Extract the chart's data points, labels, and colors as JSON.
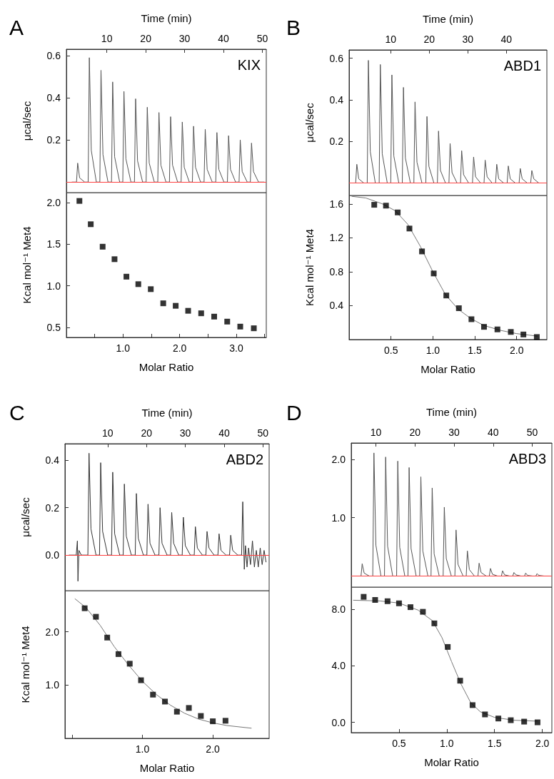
{
  "chart_data": [
    {
      "type": "line",
      "title": "A",
      "annotations": [
        "KIX"
      ],
      "xlabel": "Time (min)",
      "ylabel": "μcal/sec",
      "xlim": [
        -0.4,
        51
      ],
      "xticks": [
        10,
        20,
        30,
        40,
        50
      ],
      "ylim": [
        -0.05,
        0.63
      ],
      "yticks": [
        {
          "value": 0,
          "label": null
        },
        0.2,
        0.4,
        0.6
      ],
      "marker": "none",
      "ref_lines": [
        {
          "axis": "y",
          "value": 0,
          "color": "#ff4040"
        }
      ],
      "series": [
        {
          "color": "#555555",
          "x": [
            1,
            2.2,
            2.5,
            3,
            4.3,
            5.2,
            5.5,
            6,
            7.3,
            8.2,
            8.5,
            9,
            10.3,
            11.2,
            11.5,
            12,
            13.3,
            14.1,
            14.4,
            14.9,
            16.2,
            17.1,
            17.4,
            17.9,
            19.2,
            20.1,
            20.4,
            20.9,
            22.2,
            23.1,
            23.4,
            23.9,
            25.2,
            26.1,
            26.4,
            26.9,
            28.2,
            29.1,
            29.4,
            29.9,
            31.2,
            32,
            32.3,
            32.8,
            34.1,
            35,
            35.3,
            35.8,
            37.1,
            38,
            38.3,
            38.8,
            40.1,
            41,
            41.3,
            41.8,
            43.1,
            44,
            44.3,
            44.8,
            46.1,
            46.9,
            47.2,
            47.7,
            49,
            50.5
          ],
          "values": [
            0,
            0,
            0.09,
            0.02,
            0,
            0,
            0.59,
            0.15,
            0,
            0,
            0.53,
            0.13,
            0,
            0,
            0.475,
            0.12,
            0,
            0,
            0.43,
            0.11,
            0,
            0,
            0.395,
            0.1,
            0,
            0,
            0.355,
            0.09,
            0,
            0,
            0.33,
            0.08,
            0,
            0,
            0.31,
            0.08,
            0,
            0,
            0.285,
            0.07,
            0,
            0,
            0.265,
            0.07,
            0,
            0,
            0.25,
            0.06,
            0,
            0,
            0.235,
            0.06,
            0,
            0,
            0.22,
            0.06,
            0,
            0,
            0.2,
            0.05,
            0,
            0,
            0.185,
            0.05,
            0,
            0
          ]
        }
      ]
    },
    {
      "type": "scatter",
      "xlabel": "Molar Ratio",
      "ylabel": "Kcal mol⁻¹ Met4",
      "xlim": [
        0,
        3.53
      ],
      "xticks": [
        {
          "value": 0.5,
          "label": null
        },
        {
          "value": 1,
          "label": "1.0"
        },
        {
          "value": 1.5,
          "label": null
        },
        {
          "value": 2,
          "label": "2.0"
        },
        {
          "value": 2.5,
          "label": null
        },
        {
          "value": 3,
          "label": "3.0"
        },
        {
          "value": 3.5,
          "label": null
        }
      ],
      "ylim": [
        0.38,
        2.12
      ],
      "yticks": [
        0.5,
        {
          "value": 1,
          "label": "1.0"
        },
        1.5,
        {
          "value": 2,
          "label": "2.0"
        }
      ],
      "marker": "square",
      "series": [
        {
          "color": "#000000",
          "x": [
            0.23,
            0.43,
            0.64,
            0.85,
            1.06,
            1.27,
            1.49,
            1.71,
            1.93,
            2.15,
            2.38,
            2.61,
            2.84,
            3.07,
            3.31
          ],
          "values": [
            2.02,
            1.74,
            1.47,
            1.32,
            1.11,
            1.02,
            0.96,
            0.79,
            0.76,
            0.7,
            0.67,
            0.63,
            0.57,
            0.51,
            0.49
          ]
        }
      ]
    },
    {
      "type": "line",
      "title": "B",
      "annotations": [
        "ABD1"
      ],
      "xlabel": "Time (min)",
      "ylabel": "μcal/sec",
      "xlim": [
        -0.8,
        50.5
      ],
      "xticks": [
        10,
        20,
        30,
        40
      ],
      "ylim": [
        -0.06,
        0.64
      ],
      "yticks": [
        {
          "value": 0,
          "label": null
        },
        0.2,
        0.4,
        0.6
      ],
      "marker": "none",
      "ref_lines": [
        {
          "axis": "y",
          "value": 0,
          "color": "#ff4040"
        }
      ],
      "series": [
        {
          "color": "#555555",
          "x": [
            0,
            0.9,
            1.2,
            1.7,
            3,
            3.9,
            4.2,
            4.7,
            6,
            7,
            7.3,
            7.8,
            9.1,
            10,
            10.3,
            10.8,
            12.1,
            13,
            13.3,
            13.8,
            15.1,
            16,
            16.3,
            16.8,
            18.1,
            19.1,
            19.4,
            19.9,
            21.2,
            22.1,
            22.4,
            22.9,
            24.2,
            25.1,
            25.4,
            25.9,
            27.2,
            28.1,
            28.4,
            28.9,
            30.2,
            31.2,
            31.5,
            32,
            33.3,
            34.2,
            34.5,
            35,
            36.3,
            37.2,
            37.5,
            38,
            39.3,
            40.2,
            40.5,
            41,
            42.3,
            43.3,
            43.6,
            44.1,
            45.4,
            46.3,
            46.6,
            47.1,
            48.4,
            50
          ],
          "values": [
            0,
            0,
            0.09,
            0.02,
            0,
            0,
            0.59,
            0.15,
            0,
            0,
            0.57,
            0.14,
            0,
            0,
            0.52,
            0.13,
            0,
            0,
            0.46,
            0.12,
            0,
            0,
            0.39,
            0.1,
            0,
            0,
            0.32,
            0.08,
            0,
            0,
            0.25,
            0.06,
            0,
            0,
            0.19,
            0.05,
            0,
            0,
            0.155,
            0.04,
            0,
            0,
            0.125,
            0.03,
            0,
            0,
            0.11,
            0.03,
            0,
            0,
            0.09,
            0.02,
            0,
            0,
            0.082,
            0.02,
            0,
            0,
            0.07,
            0.02,
            0,
            0,
            0.06,
            0.02,
            0,
            0
          ]
        }
      ]
    },
    {
      "type": "scatter",
      "xlabel": "Molar Ratio",
      "ylabel": "Kcal mol⁻¹ Met4",
      "xlim": [
        0,
        2.36
      ],
      "xticks": [
        0.5,
        {
          "value": 1,
          "label": "1.0"
        },
        1.5,
        {
          "value": 2,
          "label": "2.0"
        }
      ],
      "ylim": [
        0,
        1.7
      ],
      "yticks": [
        0.4,
        0.8,
        1.2,
        1.6
      ],
      "marker": "square",
      "series": [
        {
          "color": "#000000",
          "x": [
            0.3,
            0.44,
            0.58,
            0.72,
            0.87,
            1.01,
            1.16,
            1.31,
            1.46,
            1.61,
            1.77,
            1.93,
            2.08,
            2.24
          ],
          "values": [
            1.59,
            1.58,
            1.5,
            1.31,
            1.04,
            0.78,
            0.52,
            0.37,
            0.24,
            0.15,
            0.12,
            0.09,
            0.06,
            0.03
          ]
        },
        {
          "type": "line",
          "marker": "none",
          "color": "#777777",
          "x": [
            0.03,
            0.2,
            0.4,
            0.55,
            0.7,
            0.85,
            1,
            1.15,
            1.3,
            1.45,
            1.6,
            1.8,
            2,
            2.25
          ],
          "values": [
            1.69,
            1.67,
            1.6,
            1.52,
            1.36,
            1.1,
            0.8,
            0.53,
            0.36,
            0.25,
            0.17,
            0.11,
            0.07,
            0.04
          ]
        }
      ]
    },
    {
      "type": "line",
      "title": "C",
      "annotations": [
        "ABD2"
      ],
      "xlabel": "Time (min)",
      "ylabel": "μcal/sec",
      "xlim": [
        -1,
        51.6
      ],
      "xticks": [
        10,
        20,
        30,
        40,
        50
      ],
      "ylim": [
        -0.15,
        0.47
      ],
      "yticks": [
        {
          "value": 0,
          "label": "0.0"
        },
        0.2,
        0.4
      ],
      "marker": "none",
      "ref_lines": [
        {
          "axis": "y",
          "value": 0,
          "color": "#ff4040"
        }
      ],
      "series": [
        {
          "color": "#333333",
          "x": [
            0,
            1.9,
            2.2,
            2.35,
            2.6,
            3.2,
            4.9,
            5.2,
            5.7,
            7,
            7.9,
            8.2,
            8.7,
            10,
            11,
            11.3,
            11.8,
            13.1,
            14,
            14.3,
            14.8,
            16.1,
            17.1,
            17.4,
            17.9,
            19.2,
            20.1,
            20.4,
            20.9,
            22.2,
            23.2,
            23.5,
            24,
            25.3,
            26.2,
            26.5,
            27,
            28.3,
            29.2,
            29.5,
            30,
            31.3,
            32.3,
            32.6,
            33.1,
            34.4,
            35.3,
            35.6,
            36.1,
            37.4,
            38.4,
            38.7,
            39.2,
            40.5,
            41.4,
            41.7,
            42.2,
            43.5,
            44.5,
            44.8,
            45.2,
            45.5,
            45.9,
            46.3,
            46.8,
            47.3,
            47.8,
            48.3,
            48.8,
            49.3,
            49.8,
            50.3,
            50.8
          ],
          "values": [
            0,
            0,
            0.06,
            -0.11,
            0.02,
            0,
            0,
            0.43,
            0.11,
            0,
            0,
            0.39,
            0.1,
            0,
            0,
            0.35,
            0.09,
            0,
            0,
            0.3,
            0.08,
            0,
            0,
            0.26,
            0.07,
            0,
            0,
            0.215,
            0.05,
            0,
            0,
            0.2,
            0.05,
            0,
            0,
            0.18,
            0.05,
            0,
            0,
            0.16,
            0.04,
            0,
            0,
            0.12,
            0.03,
            0,
            0,
            0.1,
            0.03,
            0,
            0,
            0.09,
            0.02,
            0,
            0,
            0.084,
            0.02,
            0,
            0,
            0.225,
            -0.06,
            0.04,
            -0.05,
            0.03,
            -0.04,
            0.06,
            -0.05,
            0.02,
            -0.05,
            0.03,
            -0.04,
            0.02,
            -0.03
          ]
        }
      ]
    },
    {
      "type": "scatter",
      "xlabel": "Molar Ratio",
      "ylabel": "Kcal mol⁻¹ Met4",
      "xlim": [
        -0.1,
        2.8
      ],
      "xticks": [
        {
          "value": 0,
          "label": null
        },
        {
          "value": 1,
          "label": "1.0"
        },
        {
          "value": 2,
          "label": "2.0"
        }
      ],
      "ylim": [
        0,
        2.77
      ],
      "yticks": [
        {
          "value": 1,
          "label": "1.0"
        },
        {
          "value": 2,
          "label": "2.0"
        }
      ],
      "marker": "square",
      "series": [
        {
          "color": "#000000",
          "x": [
            0.18,
            0.34,
            0.5,
            0.66,
            0.82,
            0.98,
            1.15,
            1.32,
            1.49,
            1.66,
            1.83,
            2,
            2.18
          ],
          "values": [
            2.44,
            2.28,
            1.89,
            1.58,
            1.4,
            1.09,
            0.82,
            0.69,
            0.5,
            0.57,
            0.42,
            0.32,
            0.33
          ]
        },
        {
          "type": "line",
          "marker": "none",
          "color": "#777777",
          "x": [
            0.04,
            0.2,
            0.4,
            0.6,
            0.8,
            1,
            1.2,
            1.4,
            1.6,
            1.8,
            2,
            2.2,
            2.55
          ],
          "values": [
            2.62,
            2.45,
            2.12,
            1.72,
            1.38,
            1.07,
            0.82,
            0.62,
            0.47,
            0.36,
            0.29,
            0.24,
            0.19
          ]
        }
      ]
    },
    {
      "type": "line",
      "title": "D",
      "annotations": [
        "ABD3"
      ],
      "xlabel": "Time (min)",
      "xlim": [
        3.7,
        55
      ],
      "xticks": [
        10,
        20,
        30,
        40,
        50
      ],
      "ylim": [
        -0.19,
        2.28
      ],
      "yticks": [
        {
          "value": 0,
          "label": null
        },
        {
          "value": 1,
          "label": "1.0"
        },
        {
          "value": 2,
          "label": "2.0"
        }
      ],
      "marker": "none",
      "ref_lines": [
        {
          "axis": "y",
          "value": 0,
          "color": "#ff4040"
        }
      ],
      "series": [
        {
          "color": "#555555",
          "x": [
            4,
            6.2,
            6.5,
            7,
            8.3,
            9.2,
            9.5,
            10,
            11.3,
            12.2,
            12.5,
            13,
            14.3,
            15.3,
            15.6,
            16.1,
            17.4,
            18.2,
            18.5,
            19,
            20.3,
            21.2,
            21.5,
            22,
            23.3,
            24.1,
            24.4,
            24.9,
            26.2,
            27.2,
            27.5,
            28,
            29.3,
            30.2,
            30.5,
            31,
            32.3,
            33.1,
            33.4,
            33.9,
            35.2,
            36.1,
            36.4,
            36.9,
            38.2,
            39,
            39.3,
            39.8,
            41.1,
            42.1,
            42.4,
            42.9,
            44.2,
            45,
            45.3,
            45.8,
            47.1,
            48,
            48.3,
            48.8,
            50.1,
            50.9,
            51.2,
            51.7,
            53,
            54.5
          ],
          "values": [
            0,
            0,
            0.21,
            0.05,
            0,
            0,
            2.11,
            0.53,
            0,
            0,
            2.04,
            0.51,
            0,
            0,
            1.97,
            0.49,
            0,
            0,
            1.86,
            0.47,
            0,
            0,
            1.7,
            0.43,
            0,
            0,
            1.51,
            0.38,
            0,
            0,
            1.18,
            0.3,
            0,
            0,
            0.79,
            0.2,
            0,
            0,
            0.43,
            0.11,
            0,
            0,
            0.22,
            0.06,
            0,
            0,
            0.13,
            0.03,
            0,
            0,
            0.09,
            0.02,
            0,
            0,
            0.06,
            0.02,
            0,
            0,
            0.05,
            0.01,
            0,
            0,
            0.04,
            0.01,
            0,
            0
          ]
        }
      ]
    },
    {
      "type": "scatter",
      "xlabel": "Molar Ratio",
      "xlim": [
        0,
        2.1
      ],
      "xticks": [
        0.5,
        {
          "value": 1,
          "label": "1.0"
        },
        1.5,
        {
          "value": 2,
          "label": "2.0"
        }
      ],
      "ylim": [
        -0.73,
        9.58
      ],
      "yticks": [
        {
          "value": 0,
          "label": "0.0"
        },
        {
          "value": 4,
          "label": "4.0"
        },
        {
          "value": 8,
          "label": "8.0"
        }
      ],
      "marker": "square",
      "series": [
        {
          "color": "#000000",
          "x": [
            0.13,
            0.25,
            0.38,
            0.5,
            0.62,
            0.75,
            0.87,
            1.01,
            1.14,
            1.27,
            1.4,
            1.54,
            1.67,
            1.81,
            1.95
          ],
          "values": [
            8.89,
            8.67,
            8.58,
            8.43,
            8.16,
            7.83,
            7.01,
            5.34,
            2.95,
            1.22,
            0.56,
            0.27,
            0.15,
            0.05,
            0
          ]
        },
        {
          "type": "line",
          "marker": "none",
          "color": "#777777",
          "x": [
            0.02,
            0.3,
            0.5,
            0.7,
            0.85,
            0.95,
            1.05,
            1.15,
            1.25,
            1.35,
            1.5,
            1.7,
            1.95
          ],
          "values": [
            8.65,
            8.6,
            8.45,
            7.95,
            7.2,
            6,
            4.3,
            2.7,
            1.4,
            0.75,
            0.35,
            0.15,
            0.08
          ]
        }
      ]
    }
  ]
}
